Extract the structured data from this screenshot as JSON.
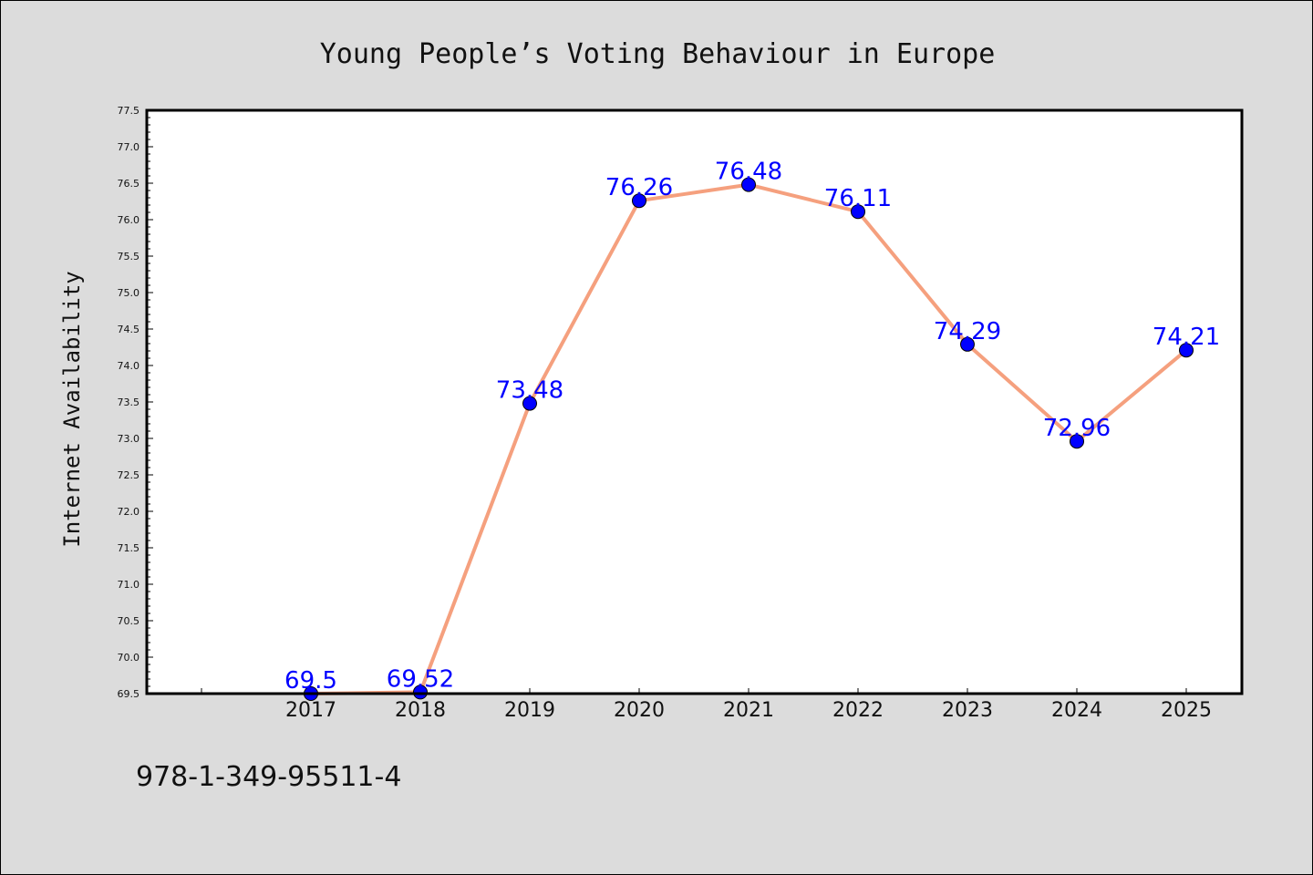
{
  "chart_data": {
    "type": "line",
    "title": "Young People’s Voting Behaviour in Europe",
    "xlabel": "",
    "ylabel": "Internet Availability",
    "categories": [
      "2017",
      "2018",
      "2019",
      "2020",
      "2021",
      "2022",
      "2023",
      "2024",
      "2025"
    ],
    "series": [
      {
        "values": [
          69.5,
          69.52,
          73.48,
          76.26,
          76.48,
          76.11,
          74.29,
          72.96,
          74.21
        ],
        "data_labels": [
          "69.5",
          "69.52",
          "73.48",
          "76.26",
          "76.48",
          "76.11",
          "74.29",
          "72.96",
          "74.21"
        ],
        "line_color": "#f5a07e",
        "marker_color": "#0000ff"
      }
    ],
    "ylim": [
      69.5,
      77.5
    ],
    "yticks": [
      "69.5",
      "70.0",
      "70.5",
      "71.0",
      "71.5",
      "72.0",
      "72.5",
      "73.0",
      "73.5",
      "74.0",
      "74.5",
      "75.0",
      "75.5",
      "76.0",
      "76.5",
      "77.0",
      "77.5"
    ],
    "grid": false,
    "legend": "none",
    "label_color": "#0000ff"
  },
  "footer": {
    "isbn": "978-1-349-95511-4"
  }
}
